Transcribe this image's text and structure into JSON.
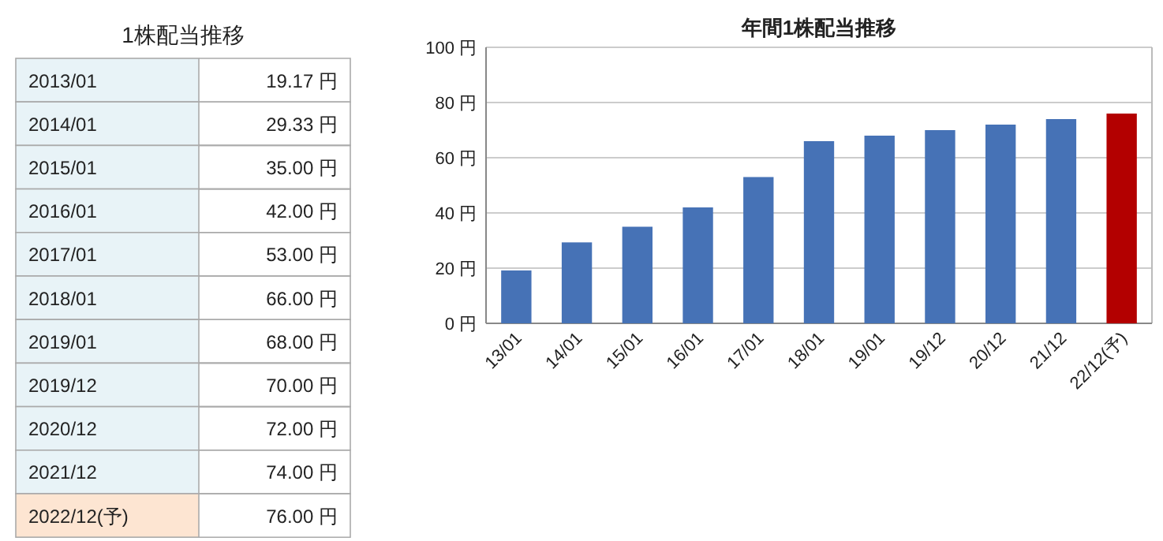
{
  "chart_data": [
    {
      "type": "other",
      "title": "1株配当推移",
      "categories": [
        "2013/01",
        "2014/01",
        "2015/01",
        "2016/01",
        "2017/01",
        "2018/01",
        "2019/01",
        "2019/12",
        "2020/12",
        "2021/12",
        "2022/12(予)"
      ],
      "values": [
        19.17,
        29.33,
        35.0,
        42.0,
        53.0,
        66.0,
        68.0,
        70.0,
        72.0,
        74.0,
        76.0
      ],
      "value_labels": [
        "19.17 円",
        "29.33 円",
        "35.00 円",
        "42.00 円",
        "53.00 円",
        "66.00 円",
        "68.00 円",
        "70.00 円",
        "72.00 円",
        "74.00 円",
        "76.00 円"
      ],
      "colors": [
        "#e8f3f7",
        "#e8f3f7",
        "#e8f3f7",
        "#e8f3f7",
        "#e8f3f7",
        "#e8f3f7",
        "#e8f3f7",
        "#e8f3f7",
        "#e8f3f7",
        "#e8f3f7",
        "#fde5d2"
      ]
    },
    {
      "type": "bar",
      "title": "年間1株配当推移",
      "categories": [
        "13/01",
        "14/01",
        "15/01",
        "16/01",
        "17/01",
        "18/01",
        "19/01",
        "19/12",
        "20/12",
        "21/12",
        "22/12(予)"
      ],
      "values": [
        19.17,
        29.33,
        35,
        42,
        53,
        66,
        68,
        70,
        72,
        74,
        76
      ],
      "colors": [
        "#4672b6",
        "#4672b6",
        "#4672b6",
        "#4672b6",
        "#4672b6",
        "#4672b6",
        "#4672b6",
        "#4672b6",
        "#4672b6",
        "#4672b6",
        "#b30000"
      ],
      "ylim": [
        0,
        100
      ],
      "yticks": [
        {
          "value": 0,
          "label": "0 円"
        },
        {
          "value": 20,
          "label": "20 円"
        },
        {
          "value": 40,
          "label": "40 円"
        },
        {
          "value": 60,
          "label": "60 円"
        },
        {
          "value": 80,
          "label": "80 円"
        },
        {
          "value": 100,
          "label": "100 円"
        }
      ],
      "grid": "y"
    }
  ]
}
